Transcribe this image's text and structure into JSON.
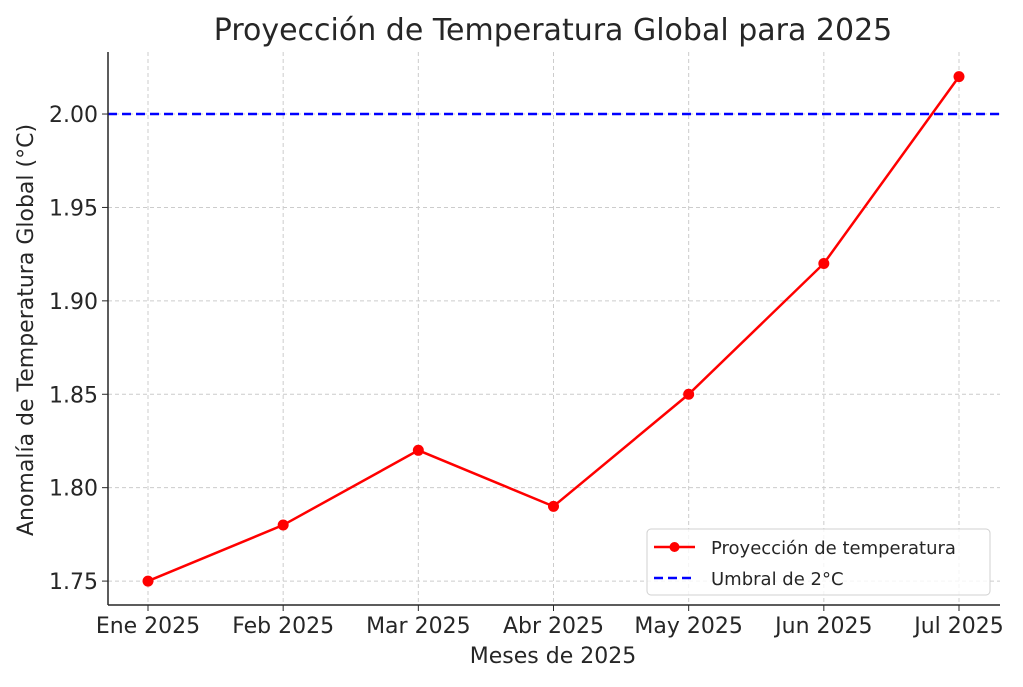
{
  "chart_data": {
    "type": "line",
    "title": "Proyección de Temperatura Global para 2025",
    "xlabel": "Meses de 2025",
    "ylabel": "Anomalía de Temperatura Global (°C)",
    "categories": [
      "Ene 2025",
      "Feb 2025",
      "Mar 2025",
      "Abr 2025",
      "May 2025",
      "Jun 2025",
      "Jul 2025"
    ],
    "series": [
      {
        "name": "Proyección de temperatura",
        "values": [
          1.75,
          1.78,
          1.82,
          1.79,
          1.85,
          1.92,
          2.02
        ],
        "color": "#ff0000",
        "marker": "circle",
        "style": "solid"
      }
    ],
    "reference_lines": [
      {
        "name": "Umbral de 2°C",
        "value": 2.0,
        "color": "#0000ff",
        "style": "dashed"
      }
    ],
    "yticks": [
      1.75,
      1.8,
      1.85,
      1.9,
      1.95,
      2.0
    ],
    "ytick_labels": [
      "1.75",
      "1.80",
      "1.85",
      "1.90",
      "1.95",
      "2.00"
    ],
    "ylim": [
      1.7372,
      2.0332
    ],
    "grid": true,
    "legend_position": "lower-right"
  }
}
